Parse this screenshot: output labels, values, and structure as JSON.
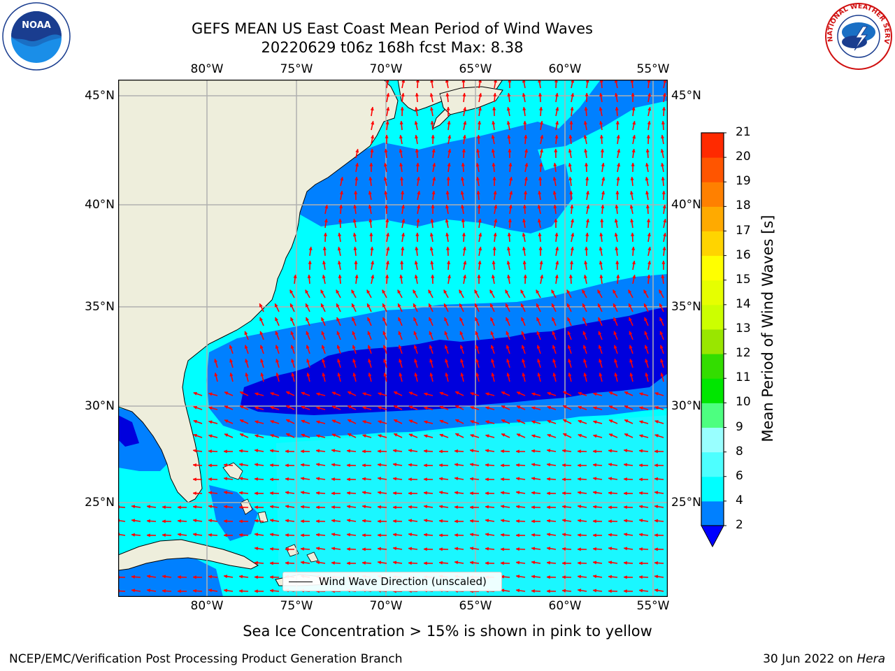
{
  "title": {
    "line1": "GEFS MEAN US East Coast Mean Period of Wind Waves",
    "line2": "20220629 t06z 168h fcst   Max: 8.38"
  },
  "logos": {
    "left": "NOAA",
    "right": "NATIONAL WEATHER SERVICE"
  },
  "map": {
    "lon_ticks": [
      "80°W",
      "75°W",
      "70°W",
      "65°W",
      "60°W",
      "55°W"
    ],
    "lat_ticks": [
      "45°N",
      "40°N",
      "35°N",
      "30°N",
      "25°N"
    ],
    "lon_range": [
      -85,
      -54.5
    ],
    "lat_range": [
      20.5,
      46.5
    ],
    "colors": {
      "land": "#eeeedc",
      "ocean_lt": "#00ffff",
      "ocean_md": "#0080ff",
      "ocean_dk": "#0000dd",
      "arrow": "#ff0000",
      "grid": "#b0b0b0"
    }
  },
  "legend": {
    "label": "Wind Wave Direction (unscaled)"
  },
  "colorbar": {
    "label": "Mean Period of Wind Waves [s]",
    "ticks": [
      "2",
      "4",
      "6",
      "8",
      "9",
      "10",
      "11",
      "12",
      "13",
      "14",
      "15",
      "16",
      "17",
      "18",
      "19",
      "20",
      "21"
    ],
    "colors": [
      "#0080ff",
      "#00ffff",
      "#4dffff",
      "#99ffff",
      "#4dff80",
      "#00e600",
      "#33dd00",
      "#99e600",
      "#ccff00",
      "#e6ff00",
      "#ffff00",
      "#ffd400",
      "#ffaa00",
      "#ff8000",
      "#ff5500",
      "#ff2a00",
      "#ff0000"
    ],
    "under_color": "#0000ff"
  },
  "footer": {
    "caption": "Sea Ice Concentration > 15% is shown in pink to yellow",
    "left": "NCEP/EMC/Verification Post Processing Product Generation Branch",
    "right_date": "30 Jun 2022 on ",
    "right_machine": "Hera"
  }
}
